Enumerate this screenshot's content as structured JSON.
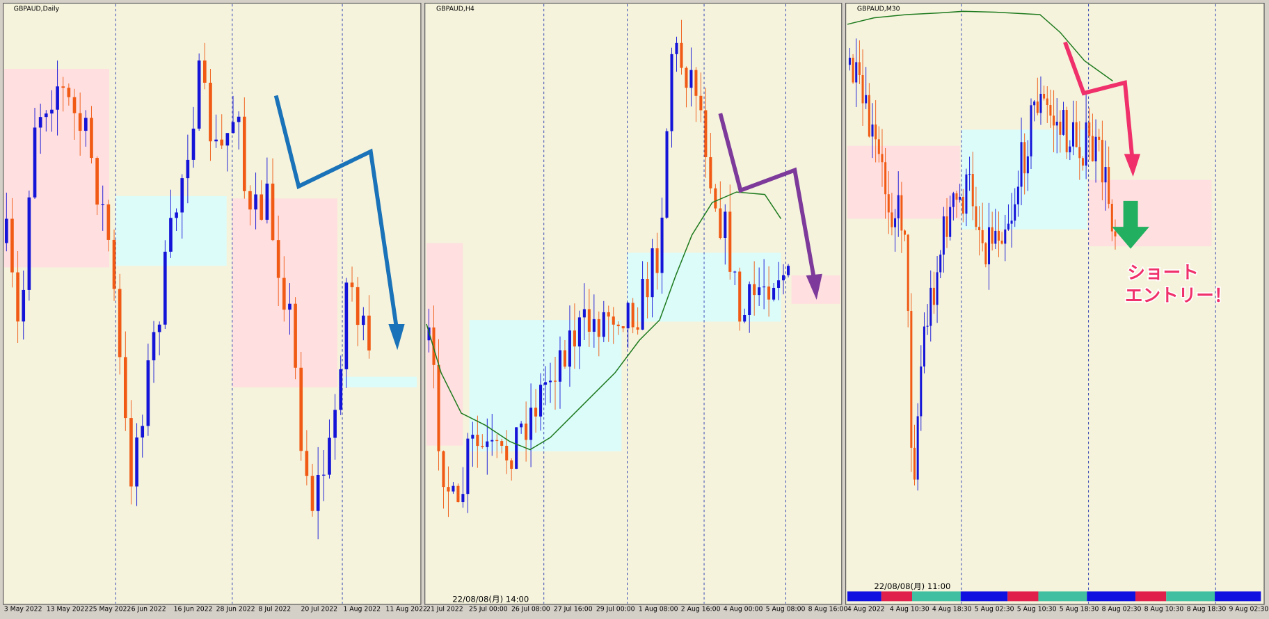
{
  "panels": [
    {
      "title": "GBPAUD,Daily",
      "x_labels": [
        "3 May 2022",
        "13 May 2022",
        "25 May 2022",
        "6 Jun 2022",
        "16 Jun 2022",
        "28 Jun 2022",
        "8 Jul 2022",
        "20 Jul 2022",
        "1 Aug 2022",
        "11 Aug 2022"
      ]
    },
    {
      "title": "GBPAUD,H4",
      "timestamp": "22/08/08(月) 14:00",
      "x_labels": [
        "21 Jul 2022",
        "25 Jul 00:00",
        "26 Jul 08:00",
        "27 Jul 16:00",
        "29 Jul 00:00",
        "1 Aug 08:00",
        "2 Aug 16:00",
        "4 Aug 00:00",
        "5 Aug 08:00",
        "8 Aug 16:00"
      ]
    },
    {
      "title": "GBPAUD,M30",
      "timestamp": "22/08/08(月) 11:00",
      "x_labels": [
        "4 Aug 2022",
        "4 Aug 10:30",
        "4 Aug 18:30",
        "5 Aug 02:30",
        "5 Aug 10:30",
        "5 Aug 18:30",
        "8 Aug 02:30",
        "8 Aug 10:30",
        "8 Aug 18:30",
        "9 Aug 02:30"
      ],
      "annotation": [
        "ショート",
        "エントリー！"
      ]
    }
  ]
}
